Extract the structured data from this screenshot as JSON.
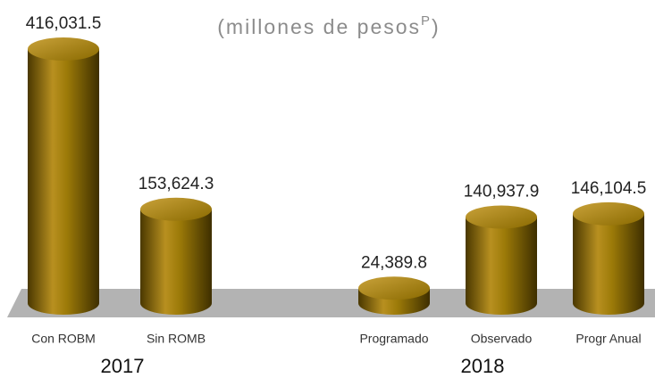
{
  "chart_data": {
    "type": "cylinder-bar",
    "title": "(millones de pesos",
    "title_superscript": "P",
    "title_end": ")",
    "categories": [
      "Con ROBM",
      "Sin ROMB",
      "Programado",
      "Observado",
      "Progr Anual"
    ],
    "values": [
      416031.5,
      153624.3,
      24389.8,
      140937.9,
      146104.5
    ],
    "value_labels": [
      "416,031.5",
      "153,624.3",
      "24,389.8",
      "140,937.9",
      "146,104.5"
    ],
    "group_labels": [
      "2017",
      "2018"
    ],
    "color": "#8a6a00"
  }
}
